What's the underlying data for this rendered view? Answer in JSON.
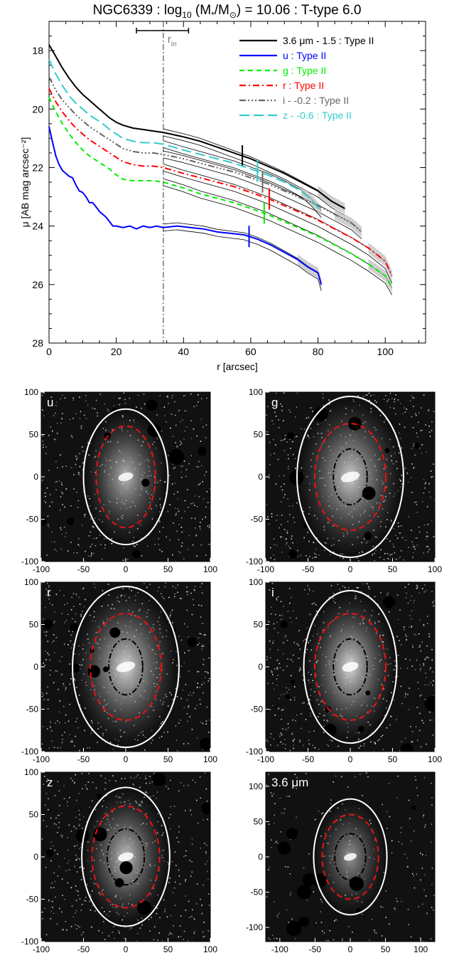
{
  "title": {
    "pre": "NGC6339 : log",
    "sub": "10",
    "mid": " (M",
    "star": "*",
    "slash": "/M",
    "sun": "⊙",
    "post": ") = 10.06 : T-type 6.0"
  },
  "chart_data": {
    "type": "line",
    "xlabel": "r [arcsec]",
    "ylabel": "μ [AB mag arcsec⁻²]",
    "xlim": [
      0,
      112
    ],
    "ylim": [
      28,
      17
    ],
    "x_ticks": [
      0,
      20,
      40,
      60,
      80,
      100
    ],
    "y_ticks": [
      18,
      20,
      22,
      24,
      26,
      28
    ],
    "r_in": 34,
    "r_in_label": "r",
    "r_in_label_sub": "in",
    "r_in_errorbar": [
      26,
      41.5
    ],
    "legend_position": "top-right",
    "series": [
      {
        "name": "3.6 μm - 1.5 : Type II",
        "color": "#000000",
        "dash": "solid",
        "break_r": 57.5,
        "points": [
          [
            0,
            17.8
          ],
          [
            2,
            18.2
          ],
          [
            4,
            18.6
          ],
          [
            6,
            18.95
          ],
          [
            8,
            19.25
          ],
          [
            10,
            19.5
          ],
          [
            12,
            19.7
          ],
          [
            14,
            19.9
          ],
          [
            16,
            20.1
          ],
          [
            18,
            20.3
          ],
          [
            20,
            20.45
          ],
          [
            22,
            20.55
          ],
          [
            25,
            20.65
          ],
          [
            28,
            20.7
          ],
          [
            31,
            20.75
          ],
          [
            34,
            20.8
          ],
          [
            40,
            20.95
          ],
          [
            45,
            21.1
          ],
          [
            50,
            21.3
          ],
          [
            55,
            21.5
          ],
          [
            60,
            21.7
          ],
          [
            65,
            21.95
          ],
          [
            70,
            22.2
          ],
          [
            75,
            22.5
          ],
          [
            80,
            22.8
          ],
          [
            84,
            23.15
          ],
          [
            88,
            23.4
          ]
        ]
      },
      {
        "name": "u : Type II",
        "color": "#0000ff",
        "dash": "solid",
        "break_r": 59.5,
        "points": [
          [
            0,
            20.6
          ],
          [
            1,
            21.1
          ],
          [
            2,
            21.6
          ],
          [
            3,
            21.9
          ],
          [
            4,
            22.1
          ],
          [
            5,
            22.2
          ],
          [
            6,
            22.3
          ],
          [
            7,
            22.35
          ],
          [
            8,
            22.6
          ],
          [
            9,
            22.8
          ],
          [
            10,
            22.85
          ],
          [
            11,
            23.0
          ],
          [
            12,
            23.2
          ],
          [
            13,
            23.2
          ],
          [
            14,
            23.35
          ],
          [
            15,
            23.5
          ],
          [
            16,
            23.6
          ],
          [
            17,
            23.7
          ],
          [
            18,
            23.85
          ],
          [
            19,
            24.0
          ],
          [
            20,
            24.0
          ],
          [
            22,
            24.05
          ],
          [
            24,
            24.0
          ],
          [
            26,
            24.1
          ],
          [
            28,
            24.0
          ],
          [
            30,
            24.05
          ],
          [
            32,
            24.0
          ],
          [
            34,
            24.05
          ],
          [
            38,
            24.0
          ],
          [
            42,
            24.05
          ],
          [
            46,
            24.1
          ],
          [
            50,
            24.2
          ],
          [
            54,
            24.25
          ],
          [
            58,
            24.3
          ],
          [
            62,
            24.45
          ],
          [
            66,
            24.65
          ],
          [
            70,
            24.9
          ],
          [
            74,
            25.15
          ],
          [
            77,
            25.4
          ],
          [
            80,
            25.6
          ],
          [
            81,
            26.0
          ]
        ]
      },
      {
        "name": "g : Type II",
        "color": "#00ee00",
        "dash": "dashed",
        "break_r": 64,
        "points": [
          [
            0,
            19.6
          ],
          [
            2,
            20.1
          ],
          [
            4,
            20.5
          ],
          [
            6,
            20.85
          ],
          [
            8,
            21.15
          ],
          [
            10,
            21.4
          ],
          [
            12,
            21.6
          ],
          [
            14,
            21.75
          ],
          [
            16,
            21.9
          ],
          [
            18,
            22.05
          ],
          [
            20,
            22.25
          ],
          [
            22,
            22.4
          ],
          [
            25,
            22.45
          ],
          [
            28,
            22.45
          ],
          [
            31,
            22.45
          ],
          [
            34,
            22.5
          ],
          [
            40,
            22.7
          ],
          [
            45,
            22.9
          ],
          [
            50,
            23.05
          ],
          [
            55,
            23.2
          ],
          [
            60,
            23.4
          ],
          [
            65,
            23.6
          ],
          [
            70,
            23.85
          ],
          [
            75,
            24.1
          ],
          [
            80,
            24.35
          ],
          [
            85,
            24.65
          ],
          [
            90,
            24.95
          ],
          [
            95,
            25.3
          ],
          [
            100,
            25.7
          ],
          [
            102,
            26.1
          ]
        ]
      },
      {
        "name": "r : Type II",
        "color": "#ff0000",
        "dash": "dashdot",
        "break_r": 65.5,
        "points": [
          [
            0,
            19.3
          ],
          [
            2,
            19.75
          ],
          [
            4,
            20.1
          ],
          [
            6,
            20.4
          ],
          [
            8,
            20.65
          ],
          [
            10,
            20.85
          ],
          [
            12,
            21.05
          ],
          [
            14,
            21.2
          ],
          [
            16,
            21.35
          ],
          [
            18,
            21.5
          ],
          [
            20,
            21.65
          ],
          [
            22,
            21.8
          ],
          [
            25,
            21.9
          ],
          [
            28,
            21.95
          ],
          [
            31,
            21.95
          ],
          [
            34,
            22.0
          ],
          [
            40,
            22.2
          ],
          [
            45,
            22.35
          ],
          [
            50,
            22.5
          ],
          [
            55,
            22.65
          ],
          [
            60,
            22.85
          ],
          [
            65,
            23.05
          ],
          [
            70,
            23.3
          ],
          [
            75,
            23.55
          ],
          [
            80,
            23.8
          ],
          [
            85,
            24.1
          ],
          [
            90,
            24.4
          ],
          [
            95,
            24.75
          ],
          [
            100,
            25.2
          ],
          [
            102,
            25.7
          ]
        ]
      },
      {
        "name": "i - -0.2 : Type II",
        "color": "#666666",
        "dash": "dashdotdotdot",
        "break_r": 63.5,
        "points": [
          [
            0,
            18.9
          ],
          [
            2,
            19.35
          ],
          [
            4,
            19.7
          ],
          [
            6,
            19.95
          ],
          [
            8,
            20.2
          ],
          [
            10,
            20.4
          ],
          [
            12,
            20.6
          ],
          [
            14,
            20.75
          ],
          [
            16,
            20.9
          ],
          [
            18,
            21.05
          ],
          [
            20,
            21.2
          ],
          [
            22,
            21.35
          ],
          [
            25,
            21.45
          ],
          [
            28,
            21.5
          ],
          [
            31,
            21.5
          ],
          [
            34,
            21.55
          ],
          [
            40,
            21.7
          ],
          [
            45,
            21.85
          ],
          [
            50,
            22.0
          ],
          [
            55,
            22.15
          ],
          [
            60,
            22.35
          ],
          [
            65,
            22.55
          ],
          [
            70,
            22.8
          ],
          [
            75,
            23.05
          ],
          [
            80,
            23.3
          ],
          [
            85,
            23.6
          ],
          [
            90,
            23.9
          ],
          [
            93,
            24.2
          ]
        ]
      },
      {
        "name": "z - -0.6 : Type II",
        "color": "#33cccc",
        "dash": "longdash",
        "break_r": 62,
        "points": [
          [
            0,
            18.3
          ],
          [
            2,
            18.8
          ],
          [
            4,
            19.2
          ],
          [
            6,
            19.55
          ],
          [
            8,
            19.8
          ],
          [
            10,
            20.0
          ],
          [
            12,
            20.2
          ],
          [
            14,
            20.35
          ],
          [
            16,
            20.5
          ],
          [
            18,
            20.7
          ],
          [
            20,
            20.85
          ],
          [
            22,
            21.0
          ],
          [
            25,
            21.1
          ],
          [
            28,
            21.15
          ],
          [
            31,
            21.15
          ],
          [
            34,
            21.2
          ],
          [
            40,
            21.4
          ],
          [
            45,
            21.55
          ],
          [
            50,
            21.7
          ],
          [
            55,
            21.85
          ],
          [
            60,
            22.05
          ],
          [
            65,
            22.25
          ],
          [
            70,
            22.5
          ],
          [
            75,
            22.8
          ],
          [
            78,
            23.1
          ],
          [
            81,
            23.5
          ]
        ]
      }
    ]
  },
  "image_panels": [
    {
      "band": "u",
      "label_color": "#ffffff",
      "xlim": [
        -100,
        100
      ],
      "ylim": [
        -100,
        100
      ],
      "x_ticks": [
        -100,
        -50,
        0,
        50,
        100
      ],
      "y_ticks": [
        -100,
        -50,
        0,
        50,
        100
      ],
      "brightness": 0.75,
      "dot_density": 0.55,
      "outer_ellipse": [
        50,
        80
      ],
      "red_ellipse": [
        35,
        60
      ],
      "inner_ellipse": null
    },
    {
      "band": "g",
      "label_color": "#ffffff",
      "xlim": [
        -100,
        100
      ],
      "ylim": [
        -100,
        100
      ],
      "x_ticks": [
        -100,
        -50,
        0,
        50,
        100
      ],
      "y_ticks": [
        -100,
        -50,
        0,
        50,
        100
      ],
      "brightness": 0.85,
      "dot_density": 0.6,
      "outer_ellipse": [
        63,
        95
      ],
      "red_ellipse": [
        42,
        63
      ],
      "inner_ellipse": [
        20,
        33
      ]
    },
    {
      "band": "r",
      "label_color": "#ffffff",
      "xlim": [
        -100,
        100
      ],
      "ylim": [
        -100,
        100
      ],
      "x_ticks": [
        -100,
        -50,
        0,
        50,
        100
      ],
      "y_ticks": [
        -100,
        -50,
        0,
        50,
        100
      ],
      "brightness": 0.9,
      "dot_density": 0.6,
      "outer_ellipse": [
        63,
        95
      ],
      "red_ellipse": [
        42,
        63
      ],
      "inner_ellipse": [
        20,
        33
      ]
    },
    {
      "band": "i",
      "label_color": "#ffffff",
      "xlim": [
        -100,
        100
      ],
      "ylim": [
        -100,
        100
      ],
      "x_ticks": [
        -100,
        -50,
        0,
        50,
        100
      ],
      "y_ticks": [
        -100,
        -50,
        0,
        50,
        100
      ],
      "brightness": 0.9,
      "dot_density": 0.6,
      "outer_ellipse": [
        55,
        90
      ],
      "red_ellipse": [
        42,
        63
      ],
      "inner_ellipse": [
        20,
        33
      ]
    },
    {
      "band": "z",
      "label_color": "#ffffff",
      "xlim": [
        -100,
        100
      ],
      "ylim": [
        -100,
        100
      ],
      "x_ticks": [
        -100,
        -50,
        0,
        50,
        100
      ],
      "y_ticks": [
        -100,
        -50,
        0,
        50,
        100
      ],
      "brightness": 0.8,
      "dot_density": 0.55,
      "outer_ellipse": [
        52,
        82
      ],
      "red_ellipse": [
        40,
        60
      ],
      "inner_ellipse": [
        22,
        33
      ]
    },
    {
      "band": "3.6 μm",
      "label_color": "#ffffff",
      "xlim": [
        -120,
        120
      ],
      "ylim": [
        -120,
        120
      ],
      "x_ticks": [
        -100,
        -50,
        0,
        50,
        100
      ],
      "y_ticks": [
        -100,
        -50,
        0,
        50,
        100
      ],
      "brightness": 0.6,
      "dot_density": 0.25,
      "outer_ellipse": [
        52,
        82
      ],
      "red_ellipse": [
        40,
        60
      ],
      "inner_ellipse": [
        22,
        33
      ]
    }
  ]
}
